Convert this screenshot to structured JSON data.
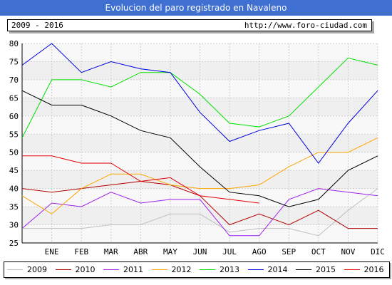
{
  "header": {
    "title": "Evolucion del paro registrado en Navaleno",
    "period": "2009 - 2016",
    "url": "http://www.foro-ciudad.com"
  },
  "colors": {
    "title_bg": "#3f6fd1",
    "plot_band_light": "#f8f8f8",
    "plot_band_dark": "#efefef",
    "grid": "#cfcfcf"
  },
  "chart_data": {
    "type": "line",
    "title": "Evolucion del paro registrado en Navaleno",
    "categories": [
      "",
      "ENE",
      "FEB",
      "MAR",
      "ABR",
      "MAY",
      "JUN",
      "JUL",
      "AGO",
      "SEP",
      "OCT",
      "NOV",
      "DIC"
    ],
    "ylim": [
      25,
      80
    ],
    "yticks": [
      25,
      30,
      35,
      40,
      45,
      50,
      55,
      60,
      65,
      70,
      75,
      80
    ],
    "grid": true,
    "legend_position": "bottom",
    "series": [
      {
        "name": "2009",
        "color": "#c0c0c0",
        "values": [
          29,
          29,
          29,
          30,
          30,
          33,
          33,
          28,
          29,
          29,
          27,
          34,
          40
        ]
      },
      {
        "name": "2010",
        "color": "#b30000",
        "values": [
          40,
          39,
          40,
          41,
          42,
          41,
          38,
          30,
          33,
          30,
          34,
          29,
          29
        ]
      },
      {
        "name": "2011",
        "color": "#a020f0",
        "values": [
          29,
          36,
          35,
          39,
          36,
          37,
          37,
          27,
          27,
          37,
          40,
          39,
          38
        ]
      },
      {
        "name": "2012",
        "color": "#ffa500",
        "values": [
          38,
          33,
          40,
          44,
          44,
          41,
          40,
          40,
          41,
          46,
          50,
          50,
          54
        ]
      },
      {
        "name": "2013",
        "color": "#00e000",
        "values": [
          54,
          70,
          70,
          68,
          72,
          72,
          66,
          58,
          57,
          60,
          68,
          76,
          74
        ]
      },
      {
        "name": "2014",
        "color": "#0000e0",
        "values": [
          74,
          80,
          72,
          75,
          73,
          72,
          61,
          53,
          56,
          58,
          47,
          58,
          67
        ]
      },
      {
        "name": "2015",
        "color": "#000000",
        "values": [
          67,
          63,
          63,
          60,
          56,
          54,
          46,
          39,
          38,
          35,
          37,
          45,
          49
        ]
      },
      {
        "name": "2016",
        "color": "#e00000",
        "values": [
          49,
          49,
          47,
          47,
          42,
          43,
          38,
          37,
          36,
          null,
          null,
          null,
          null
        ]
      }
    ]
  }
}
